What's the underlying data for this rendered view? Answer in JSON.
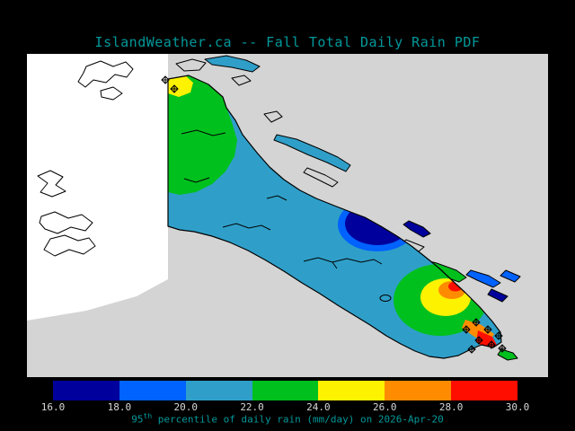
{
  "title": "IslandWeather.ca -- Fall Total Daily Rain PDF",
  "caption": {
    "prefix": "95",
    "superscript": "th",
    "rest": " percentile of daily rain (mm/day) on 2026-Apr-20"
  },
  "colors": {
    "background": "#000000",
    "title_text": "#00999b",
    "caption_text": "#00999b",
    "tick_text": "#d8d8d8",
    "map_background": "#d4d4d4",
    "no_data": "#ffffff",
    "coastline": "#000000"
  },
  "colorbar": {
    "tick_labels": [
      "16.0",
      "18.0",
      "20.0",
      "22.0",
      "24.0",
      "26.0",
      "28.0",
      "30.0"
    ],
    "segments": [
      {
        "range": "16.0-18.0",
        "color": "#00009c"
      },
      {
        "range": "18.0-20.0",
        "color": "#0062ff"
      },
      {
        "range": "20.0-22.0",
        "color": "#2f9fc9"
      },
      {
        "range": "22.0-24.0",
        "color": "#00c01e"
      },
      {
        "range": "24.0-26.0",
        "color": "#fdf200"
      },
      {
        "range": "26.0-28.0",
        "color": "#ff8c00"
      },
      {
        "range": "28.0-30.0",
        "color": "#ff0e00"
      }
    ]
  },
  "symbols": {
    "hatch_marker": "diamond-x-marker"
  },
  "chart_data": {
    "type": "heatmap",
    "title": "IslandWeather.ca -- Fall Total Daily Rain PDF",
    "subtitle": "95th percentile of daily rain (mm/day) on 2026-Apr-20",
    "colorbar_ticks": [
      16.0,
      18.0,
      20.0,
      22.0,
      24.0,
      26.0,
      28.0,
      30.0
    ],
    "colorbar_unit": "mm/day",
    "legend_position": "bottom",
    "regions": [
      {
        "area": "north Vancouver Island",
        "value_mm_day": "22-24 (green)"
      },
      {
        "area": "north island tip (hatched)",
        "value_mm_day": "24-26 (yellow)"
      },
      {
        "area": "central island body",
        "value_mm_day": "20-22 (light blue)"
      },
      {
        "area": "east-central coast blob",
        "value_mm_day": "16-18 (dark blue) ringed by 18-20"
      },
      {
        "area": "southeast bullseye outer",
        "value_mm_day": "22-24 (green)"
      },
      {
        "area": "southeast bullseye mid",
        "value_mm_day": "24-26 (yellow)"
      },
      {
        "area": "southeast bullseye inner",
        "value_mm_day": "26-28 (orange)"
      },
      {
        "area": "southeast tip spots (hatched)",
        "value_mm_day": "28-30 (red)"
      }
    ]
  }
}
